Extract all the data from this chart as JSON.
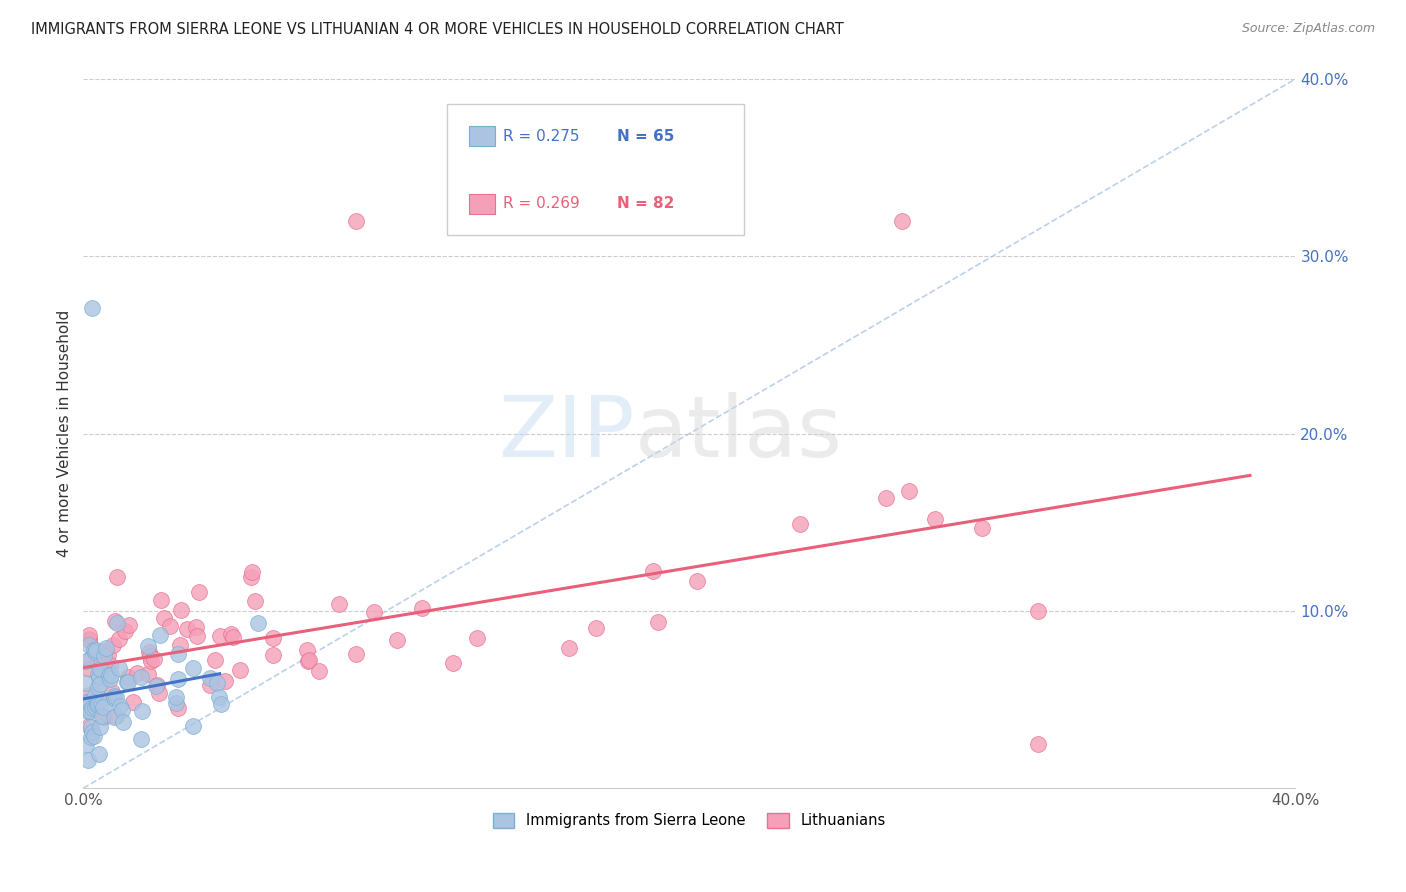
{
  "title": "IMMIGRANTS FROM SIERRA LEONE VS LITHUANIAN 4 OR MORE VEHICLES IN HOUSEHOLD CORRELATION CHART",
  "source": "Source: ZipAtlas.com",
  "ylabel": "4 or more Vehicles in Household",
  "xlim": [
    0.0,
    0.4
  ],
  "ylim": [
    0.0,
    0.4
  ],
  "xtick_positions": [
    0.0,
    0.05,
    0.1,
    0.15,
    0.2,
    0.25,
    0.3,
    0.35,
    0.4
  ],
  "xtick_labels": [
    "0.0%",
    "",
    "",
    "",
    "",
    "",
    "",
    "",
    "40.0%"
  ],
  "yticks_right": [
    0.1,
    0.2,
    0.3,
    0.4
  ],
  "ytick_labels_right": [
    "10.0%",
    "20.0%",
    "30.0%",
    "40.0%"
  ],
  "series1_name": "Immigrants from Sierra Leone",
  "series1_R": 0.275,
  "series1_N": 65,
  "series1_color": "#aac4e2",
  "series1_edge_color": "#7aafd4",
  "series2_name": "Lithuanians",
  "series2_R": 0.269,
  "series2_N": 82,
  "series2_color": "#f5a0b8",
  "series2_edge_color": "#e87090",
  "regression1_color": "#4472c4",
  "regression2_color": "#e8607a",
  "diagonal_color": "#b0c8e8",
  "background_color": "#ffffff",
  "grid_color": "#cccccc",
  "title_color": "#222222",
  "source_color": "#888888",
  "right_axis_color": "#4472c4"
}
